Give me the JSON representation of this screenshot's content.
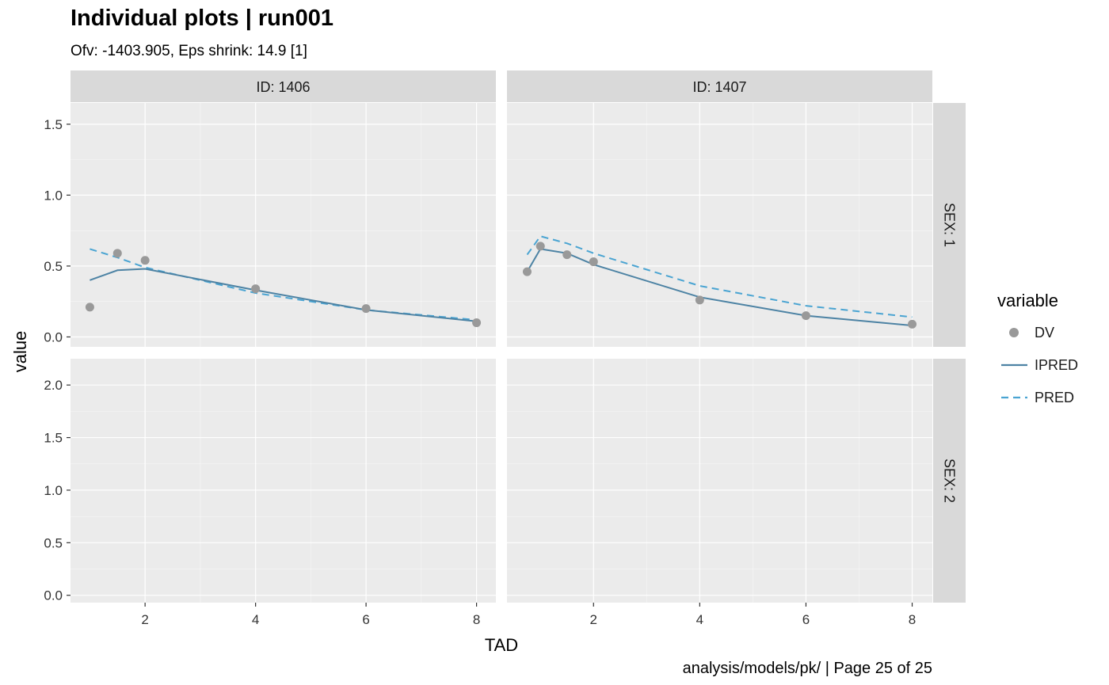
{
  "chart_data": {
    "type": "line",
    "title": "Individual plots | run001",
    "subtitle": "Ofv: -1403.905, Eps shrink: 14.9 [1]",
    "caption": "analysis/models/pk/ | Page 25 of 25",
    "xlabel": "TAD",
    "ylabel": "value",
    "grid": true,
    "legend": {
      "title": "variable",
      "position": "right",
      "entries": [
        {
          "name": "DV",
          "kind": "point",
          "color": "#999999"
        },
        {
          "name": "IPRED",
          "kind": "line",
          "color": "#4d83a4"
        },
        {
          "name": "PRED",
          "kind": "dashed",
          "color": "#4aa4d2"
        }
      ]
    },
    "columns": [
      "ID: 1406",
      "ID: 1407"
    ],
    "rows": [
      "SEX: 1",
      "SEX: 2"
    ],
    "row_axes": [
      {
        "ylim": [
          -0.07,
          1.65
        ],
        "ticks": [
          0.0,
          0.5,
          1.0,
          1.5
        ],
        "tick_labels": [
          "0.0",
          "0.5",
          "1.0",
          "1.5"
        ]
      },
      {
        "ylim": [
          -0.07,
          2.25
        ],
        "ticks": [
          0.0,
          0.5,
          1.0,
          1.5,
          2.0
        ],
        "tick_labels": [
          "0.0",
          "0.5",
          "1.0",
          "1.5",
          "2.0"
        ]
      }
    ],
    "column_axes": [
      {
        "xlim": [
          0.65,
          8.35
        ],
        "ticks": [
          2,
          4,
          6,
          8
        ],
        "tick_labels": [
          "2",
          "4",
          "6",
          "8"
        ]
      },
      {
        "xlim": [
          0.37,
          8.38
        ],
        "ticks": [
          2,
          4,
          6,
          8
        ],
        "tick_labels": [
          "2",
          "4",
          "6",
          "8"
        ]
      }
    ],
    "panels": [
      {
        "row": 0,
        "col": 0,
        "series": [
          {
            "name": "DV",
            "x": [
              1.0,
              1.5,
              2.0,
              4.0,
              6.0,
              8.0
            ],
            "y": [
              0.21,
              0.59,
              0.54,
              0.34,
              0.2,
              0.1
            ]
          },
          {
            "name": "IPRED",
            "x": [
              1.0,
              1.5,
              2.0,
              4.0,
              6.0,
              8.0
            ],
            "y": [
              0.4,
              0.47,
              0.48,
              0.33,
              0.19,
              0.11
            ]
          },
          {
            "name": "PRED",
            "x": [
              1.0,
              1.5,
              2.0,
              4.0,
              6.0,
              8.0
            ],
            "y": [
              0.62,
              0.56,
              0.49,
              0.31,
              0.19,
              0.12
            ]
          }
        ]
      },
      {
        "row": 0,
        "col": 1,
        "series": [
          {
            "name": "DV",
            "x": [
              0.75,
              1.0,
              1.5,
              2.0,
              4.0,
              6.0,
              8.0
            ],
            "y": [
              0.46,
              0.64,
              0.58,
              0.53,
              0.26,
              0.15,
              0.09
            ]
          },
          {
            "name": "IPRED",
            "x": [
              0.75,
              1.0,
              1.5,
              2.0,
              4.0,
              6.0,
              8.0
            ],
            "y": [
              0.46,
              0.62,
              0.59,
              0.51,
              0.28,
              0.15,
              0.08
            ]
          },
          {
            "name": "PRED",
            "x": [
              0.75,
              1.0,
              1.5,
              2.0,
              4.0,
              6.0,
              8.0
            ],
            "y": [
              0.58,
              0.71,
              0.66,
              0.59,
              0.36,
              0.22,
              0.14
            ]
          }
        ]
      },
      {
        "row": 1,
        "col": 0,
        "series": []
      },
      {
        "row": 1,
        "col": 1,
        "series": []
      }
    ],
    "colors": {
      "panel_bg": "#ebebeb",
      "grid": "#ffffff",
      "strip_bg": "#d9d9d9"
    }
  }
}
